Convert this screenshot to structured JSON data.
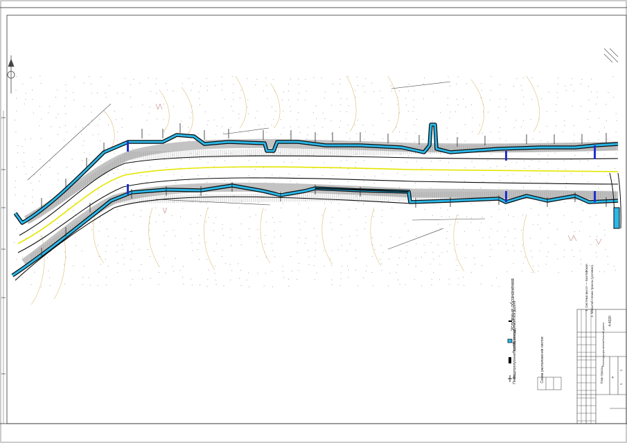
{
  "legend": {
    "title": "Условные обозначения",
    "items": [
      {
        "label": "Проектируемая ось дороги",
        "icon": "black-line-icon"
      },
      {
        "label": "Полоса отвода",
        "icon": "cyan-band-icon"
      },
      {
        "label": "Водопропускная труба",
        "icon": "culvert-icon"
      },
      {
        "label": "Пикет",
        "icon": "picket-icon"
      }
    ],
    "note": "Схема расположения листов"
  },
  "side_notes": [
    "1. Система высот — Балтийская.",
    "2. Масштаб плана трассы (условно)."
  ],
  "title_block": {
    "code": "4-4020",
    "project": "Реконструкция автомобильной дороги",
    "sheet_title": "План трассы",
    "stage": "Р",
    "sheet": "1",
    "sheets": "1"
  },
  "colors": {
    "road_band": "#2bb7e8",
    "road_edge": "#0a0a0a",
    "centerline": "#e5e600",
    "verge_gray": "#bcbcbc",
    "culvert": "#1f2fd0",
    "contour": "#d9b46a"
  }
}
